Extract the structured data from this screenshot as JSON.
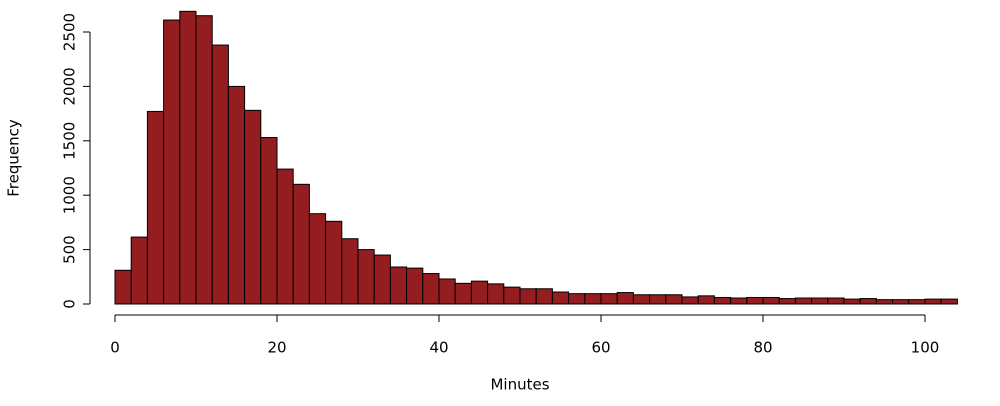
{
  "chart_data": {
    "type": "histogram",
    "x_label": "Minutes",
    "y_label": "Frequency",
    "bins": [
      0,
      2,
      4,
      6,
      8,
      10,
      12,
      14,
      16,
      18,
      20,
      22,
      24,
      26,
      28,
      30,
      32,
      34,
      36,
      38,
      40,
      42,
      44,
      46,
      48,
      50,
      52,
      54,
      56,
      58,
      60,
      62,
      64,
      66,
      68,
      70,
      72,
      74,
      76,
      78,
      80,
      82,
      84,
      86,
      88,
      90,
      92,
      94,
      96,
      98,
      100,
      102,
      104
    ],
    "values": [
      310,
      615,
      1770,
      2610,
      2690,
      2650,
      2380,
      2000,
      1780,
      1530,
      1240,
      1100,
      830,
      760,
      600,
      500,
      450,
      340,
      330,
      280,
      230,
      190,
      210,
      185,
      155,
      140,
      140,
      110,
      95,
      95,
      95,
      105,
      85,
      85,
      85,
      65,
      75,
      60,
      55,
      60,
      60,
      50,
      55,
      55,
      55,
      45,
      50,
      40,
      40,
      40,
      45,
      45
    ],
    "color": "#941e1f",
    "xlim": [
      0,
      104
    ],
    "ylim": [
      0,
      2500
    ],
    "xticks": [
      0,
      20,
      40,
      60,
      80,
      100
    ],
    "yticks": [
      0,
      500,
      1000,
      1500,
      2000,
      2500
    ]
  }
}
